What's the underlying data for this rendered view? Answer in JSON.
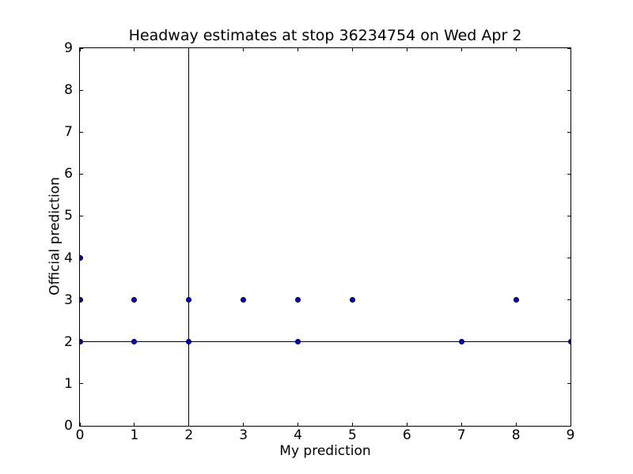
{
  "chart_data": {
    "type": "scatter",
    "title": "Headway estimates at stop 36234754 on Wed Apr 2",
    "xlabel": "My prediction",
    "ylabel": "Official prediction",
    "xlim": [
      0,
      9
    ],
    "ylim": [
      0,
      9
    ],
    "xticks": [
      0,
      1,
      2,
      3,
      4,
      5,
      6,
      7,
      8,
      9
    ],
    "yticks": [
      0,
      1,
      2,
      3,
      4,
      5,
      6,
      7,
      8,
      9
    ],
    "grid": false,
    "legend": null,
    "background_color": "#ffffff",
    "axis_color": "#000000",
    "series": [
      {
        "name": "headway-estimates",
        "marker": "circle",
        "marker_face_color": "#0000e0",
        "marker_edge_color": "#000000",
        "points": [
          [
            0,
            2
          ],
          [
            1,
            2
          ],
          [
            2,
            2
          ],
          [
            4,
            2
          ],
          [
            7,
            2
          ],
          [
            9,
            2
          ],
          [
            0,
            3
          ],
          [
            1,
            3
          ],
          [
            2,
            3
          ],
          [
            3,
            3
          ],
          [
            4,
            3
          ],
          [
            5,
            3
          ],
          [
            8,
            3
          ],
          [
            0,
            4
          ]
        ]
      }
    ],
    "reference_lines": [
      {
        "orientation": "vertical",
        "x": 2,
        "color": "#000000"
      },
      {
        "orientation": "horizontal",
        "y": 2,
        "color": "#000000"
      }
    ]
  }
}
